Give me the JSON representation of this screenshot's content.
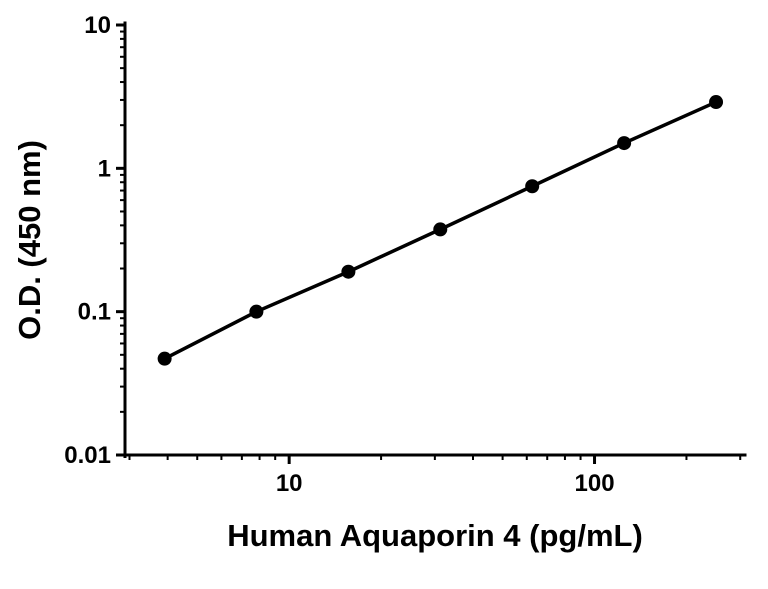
{
  "chart_data": {
    "type": "line",
    "title": "",
    "xlabel": "Human Aquaporin 4 (pg/mL)",
    "ylabel": "O.D. (450 nm)",
    "x_scale": "log",
    "y_scale": "log",
    "xlim": [
      2.9,
      311
    ],
    "ylim": [
      0.01,
      10
    ],
    "grid": false,
    "legend": null,
    "x_major_ticks": [
      10,
      100
    ],
    "x_tick_labels": [
      "10",
      "100"
    ],
    "y_major_ticks": [
      0.01,
      0.1,
      1,
      10
    ],
    "y_tick_labels": [
      "0.01",
      "0.1",
      "1",
      "10"
    ],
    "points": [
      {
        "x": 3.91,
        "y": 0.047
      },
      {
        "x": 7.81,
        "y": 0.1
      },
      {
        "x": 15.63,
        "y": 0.19
      },
      {
        "x": 31.25,
        "y": 0.375
      },
      {
        "x": 62.5,
        "y": 0.75
      },
      {
        "x": 125,
        "y": 1.5
      },
      {
        "x": 250,
        "y": 2.9
      }
    ],
    "marker": {
      "shape": "circle",
      "color": "#000000",
      "radius": 7
    },
    "line_color": "#000000"
  }
}
